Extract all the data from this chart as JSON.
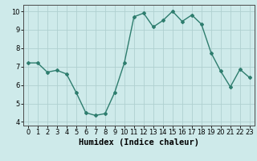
{
  "x": [
    0,
    1,
    2,
    3,
    4,
    5,
    6,
    7,
    8,
    9,
    10,
    11,
    12,
    13,
    14,
    15,
    16,
    17,
    18,
    19,
    20,
    21,
    22,
    23
  ],
  "y": [
    7.2,
    7.2,
    6.7,
    6.8,
    6.6,
    5.6,
    4.5,
    4.35,
    4.45,
    5.6,
    7.2,
    9.7,
    9.9,
    9.15,
    9.5,
    10.0,
    9.45,
    9.8,
    9.3,
    7.75,
    6.75,
    5.9,
    6.85,
    6.4
  ],
  "xlabel": "Humidex (Indice chaleur)",
  "ylim_min": 3.8,
  "ylim_max": 10.35,
  "xlim_min": -0.5,
  "xlim_max": 23.5,
  "yticks": [
    4,
    5,
    6,
    7,
    8,
    9,
    10
  ],
  "xticks": [
    0,
    1,
    2,
    3,
    4,
    5,
    6,
    7,
    8,
    9,
    10,
    11,
    12,
    13,
    14,
    15,
    16,
    17,
    18,
    19,
    20,
    21,
    22,
    23
  ],
  "line_color": "#2e7d6e",
  "marker": "D",
  "markersize": 2.0,
  "bg_color": "#ceeaea",
  "grid_color": "#b0d0d0",
  "linewidth": 1.0,
  "xlabel_fontsize": 7.5,
  "tick_fontsize": 6.0
}
